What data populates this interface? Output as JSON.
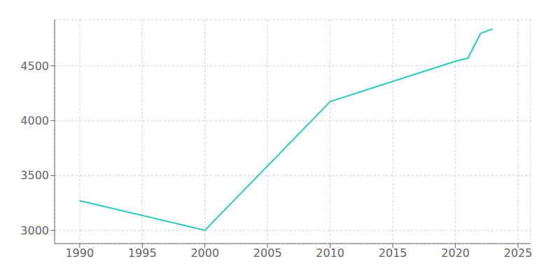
{
  "chart_data": {
    "type": "line",
    "x": [
      1990,
      2000,
      2010,
      2020,
      2021,
      2022,
      2023
    ],
    "values": [
      3271,
      3001,
      4174,
      4541,
      4569,
      4793,
      4836
    ],
    "color": "#2ec8c4",
    "xlim": [
      1988,
      2026
    ],
    "ylim": [
      2880,
      4920
    ],
    "xticks": [
      1990,
      1995,
      2000,
      2005,
      2010,
      2015,
      2020,
      2025
    ],
    "yticks": [
      3000,
      3500,
      4000,
      4500
    ],
    "grid": true
  }
}
